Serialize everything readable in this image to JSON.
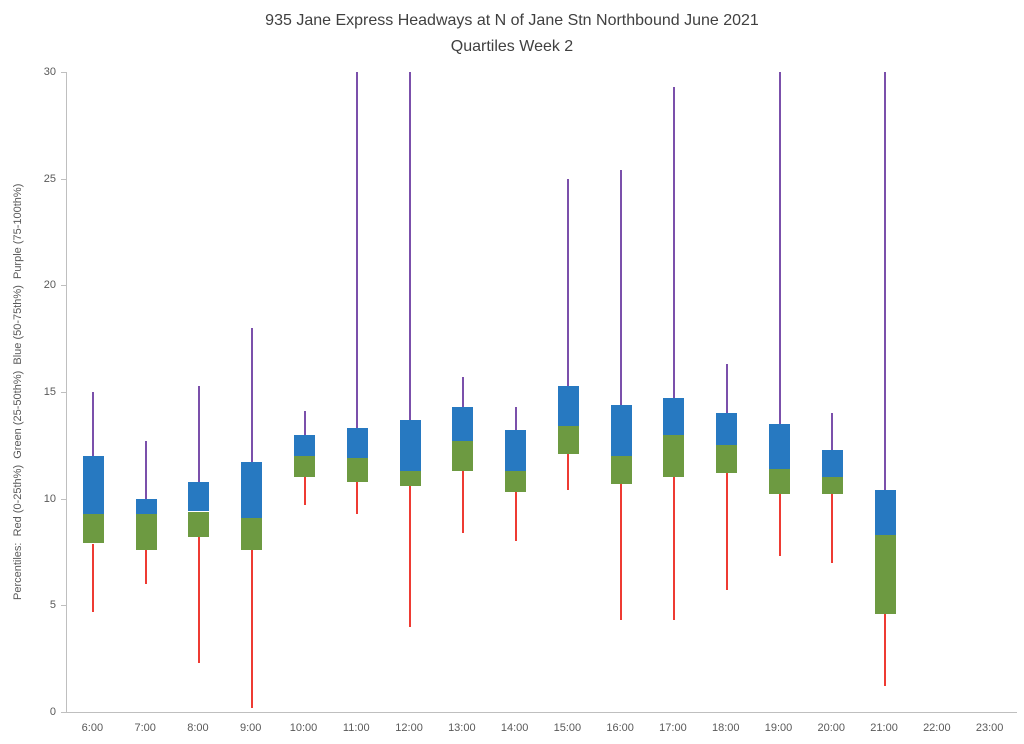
{
  "chart_data": {
    "type": "boxplot",
    "title": "935 Jane Express Headways at N of Jane Stn Northbound June 2021",
    "subtitle": "Quartiles Week 2",
    "ylabel": "Percentiles:  Red (0-25th%)  Green (25-50th%)  Blue (50-75th%)  Purple (75-100th%)",
    "xlabel": "",
    "ylim": [
      0,
      30
    ],
    "yticks": [
      0,
      5,
      10,
      15,
      20,
      25,
      30
    ],
    "grid": false,
    "legend_position": "none",
    "categories": [
      "6:00",
      "7:00",
      "8:00",
      "9:00",
      "10:00",
      "11:00",
      "12:00",
      "13:00",
      "14:00",
      "15:00",
      "16:00",
      "17:00",
      "18:00",
      "19:00",
      "20:00",
      "21:00",
      "22:00",
      "23:00"
    ],
    "boxes": [
      {
        "time": "6:00",
        "p0": 4.7,
        "p25": 7.9,
        "p50": 9.3,
        "p75": 12.0,
        "p100": 15.0
      },
      {
        "time": "7:00",
        "p0": 6.0,
        "p25": 7.6,
        "p50": 9.3,
        "p75": 10.0,
        "p100": 12.7
      },
      {
        "time": "8:00",
        "p0": 2.3,
        "p25": 8.2,
        "p50": 9.4,
        "p75": 10.8,
        "p100": 15.3
      },
      {
        "time": "9:00",
        "p0": 0.2,
        "p25": 7.6,
        "p50": 9.1,
        "p75": 11.7,
        "p100": 18.0
      },
      {
        "time": "10:00",
        "p0": 9.7,
        "p25": 11.0,
        "p50": 12.0,
        "p75": 13.0,
        "p100": 14.1
      },
      {
        "time": "11:00",
        "p0": 9.3,
        "p25": 10.8,
        "p50": 11.9,
        "p75": 13.3,
        "p100": 30.0
      },
      {
        "time": "12:00",
        "p0": 4.0,
        "p25": 10.6,
        "p50": 11.3,
        "p75": 13.7,
        "p100": 30.0
      },
      {
        "time": "13:00",
        "p0": 8.4,
        "p25": 11.3,
        "p50": 12.7,
        "p75": 14.3,
        "p100": 15.7
      },
      {
        "time": "14:00",
        "p0": 8.0,
        "p25": 10.3,
        "p50": 11.3,
        "p75": 13.2,
        "p100": 14.3
      },
      {
        "time": "15:00",
        "p0": 10.4,
        "p25": 12.1,
        "p50": 13.4,
        "p75": 15.3,
        "p100": 25.0
      },
      {
        "time": "16:00",
        "p0": 4.3,
        "p25": 10.7,
        "p50": 12.0,
        "p75": 14.4,
        "p100": 25.4
      },
      {
        "time": "17:00",
        "p0": 4.3,
        "p25": 11.0,
        "p50": 13.0,
        "p75": 14.7,
        "p100": 29.3
      },
      {
        "time": "18:00",
        "p0": 5.7,
        "p25": 11.2,
        "p50": 12.5,
        "p75": 14.0,
        "p100": 16.3
      },
      {
        "time": "19:00",
        "p0": 7.3,
        "p25": 10.2,
        "p50": 11.4,
        "p75": 13.5,
        "p100": 30.0
      },
      {
        "time": "20:00",
        "p0": 7.0,
        "p25": 10.2,
        "p50": 11.0,
        "p75": 12.3,
        "p100": 14.0
      },
      {
        "time": "21:00",
        "p0": 1.2,
        "p25": 4.6,
        "p50": 8.3,
        "p75": 10.4,
        "p100": 30.0
      },
      {
        "time": "22:00",
        "p0": null,
        "p25": null,
        "p50": null,
        "p75": null,
        "p100": null
      },
      {
        "time": "23:00",
        "p0": null,
        "p25": null,
        "p50": null,
        "p75": null,
        "p100": null
      }
    ],
    "whiskers_clipped_at_top": [
      "11:00",
      "12:00",
      "19:00",
      "21:00"
    ],
    "colors": {
      "red": "#ee3b33",
      "green": "#6d9a41",
      "blue": "#2779c1",
      "purple": "#7b50ab",
      "axis": "#bfbfbf",
      "text": "#595959",
      "title": "#404040"
    }
  }
}
